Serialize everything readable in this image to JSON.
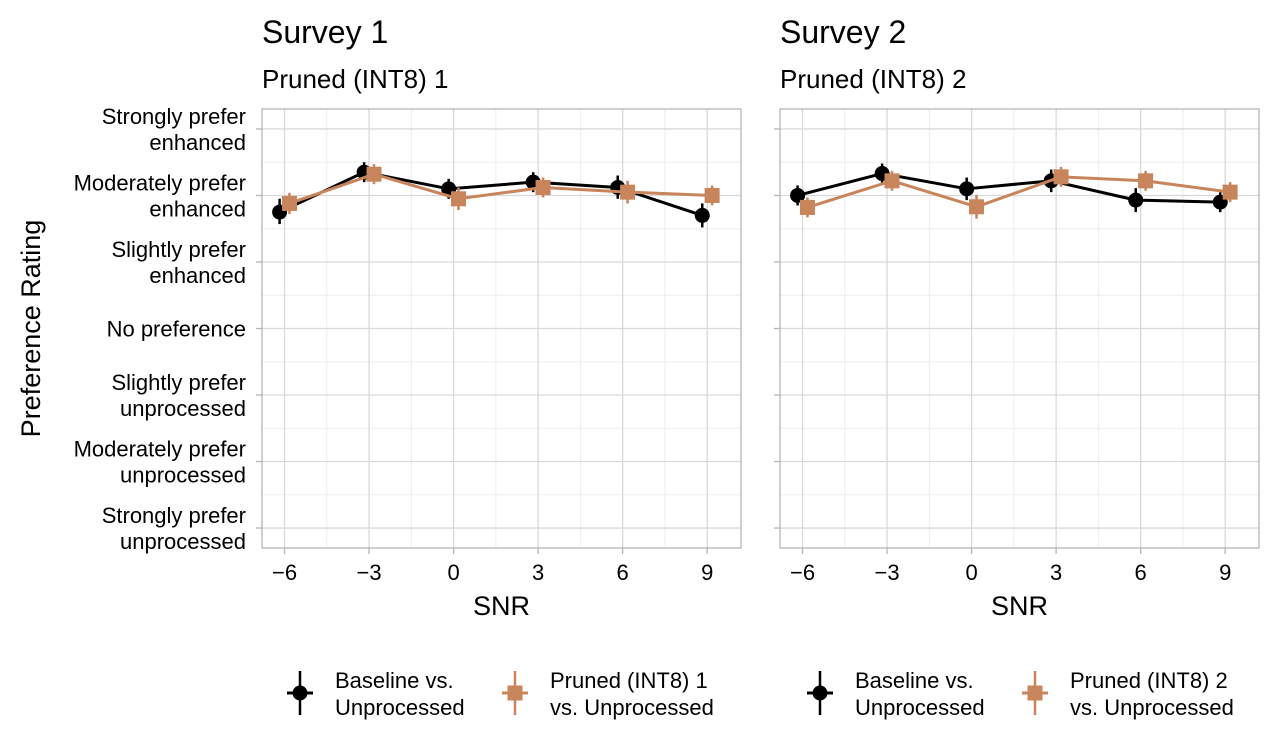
{
  "figure": {
    "y_axis_title": "Preference Rating",
    "y_categories": [
      [
        "Strongly prefer",
        "enhanced"
      ],
      [
        "Moderately prefer",
        "enhanced"
      ],
      [
        "Slightly prefer",
        "enhanced"
      ],
      [
        "No preference"
      ],
      [
        "Slightly prefer",
        "unprocessed"
      ],
      [
        "Moderately prefer",
        "unprocessed"
      ],
      [
        "Strongly prefer",
        "unprocessed"
      ]
    ]
  },
  "chart_data": [
    {
      "type": "line",
      "title": "Survey 1",
      "subtitle": "Pruned (INT8) 1",
      "xlabel": "SNR",
      "ylabel": "Preference Rating",
      "x": [
        -6,
        -3,
        0,
        3,
        6,
        9
      ],
      "x_tick_labels": [
        "−6",
        "−3",
        "0",
        "3",
        "6",
        "9"
      ],
      "xlim": [
        -6.8,
        10.2
      ],
      "ylim": [
        -3.3,
        3.3
      ],
      "y_ticks": [
        3,
        2,
        1,
        0,
        -1,
        -2,
        -3
      ],
      "grid": true,
      "legend_position": "bottom",
      "series": [
        {
          "name": "Baseline vs. Unprocessed",
          "legend_lines": [
            "Baseline vs.",
            "Unprocessed"
          ],
          "marker": "circle",
          "color": "#000000",
          "values": [
            1.75,
            2.35,
            2.1,
            2.2,
            2.12,
            1.7
          ],
          "err_low": [
            1.57,
            2.2,
            1.95,
            2.05,
            1.95,
            1.52
          ],
          "err_high": [
            1.95,
            2.5,
            2.25,
            2.35,
            2.3,
            1.88
          ]
        },
        {
          "name": "Pruned (INT8) 1 vs. Unprocessed",
          "legend_lines": [
            "Pruned (INT8) 1",
            "vs. Unprocessed"
          ],
          "marker": "square",
          "color": "#C8845A",
          "values": [
            1.88,
            2.32,
            1.95,
            2.12,
            2.05,
            2.0
          ],
          "err_low": [
            1.72,
            2.17,
            1.78,
            1.97,
            1.88,
            1.85
          ],
          "err_high": [
            2.04,
            2.47,
            2.12,
            2.27,
            2.22,
            2.15
          ]
        }
      ]
    },
    {
      "type": "line",
      "title": "Survey 2",
      "subtitle": "Pruned (INT8) 2",
      "xlabel": "SNR",
      "ylabel": "Preference Rating",
      "x": [
        -6,
        -3,
        0,
        3,
        6,
        9
      ],
      "x_tick_labels": [
        "−6",
        "−3",
        "0",
        "3",
        "6",
        "9"
      ],
      "xlim": [
        -6.8,
        10.2
      ],
      "ylim": [
        -3.3,
        3.3
      ],
      "y_ticks": [
        3,
        2,
        1,
        0,
        -1,
        -2,
        -3
      ],
      "grid": true,
      "legend_position": "bottom",
      "series": [
        {
          "name": "Baseline vs. Unprocessed",
          "legend_lines": [
            "Baseline vs.",
            "Unprocessed"
          ],
          "marker": "circle",
          "color": "#000000",
          "values": [
            2.0,
            2.33,
            2.1,
            2.22,
            1.93,
            1.9
          ],
          "err_low": [
            1.85,
            2.18,
            1.93,
            2.05,
            1.75,
            1.75
          ],
          "err_high": [
            2.15,
            2.48,
            2.27,
            2.39,
            2.11,
            2.05
          ]
        },
        {
          "name": "Pruned (INT8) 2 vs. Unprocessed",
          "legend_lines": [
            "Pruned (INT8) 2",
            "vs. Unprocessed"
          ],
          "marker": "square",
          "color": "#C8845A",
          "values": [
            1.82,
            2.22,
            1.83,
            2.28,
            2.22,
            2.05
          ],
          "err_low": [
            1.67,
            2.07,
            1.65,
            2.13,
            2.07,
            1.9
          ],
          "err_high": [
            1.97,
            2.37,
            2.01,
            2.43,
            2.37,
            2.2
          ]
        }
      ]
    }
  ]
}
